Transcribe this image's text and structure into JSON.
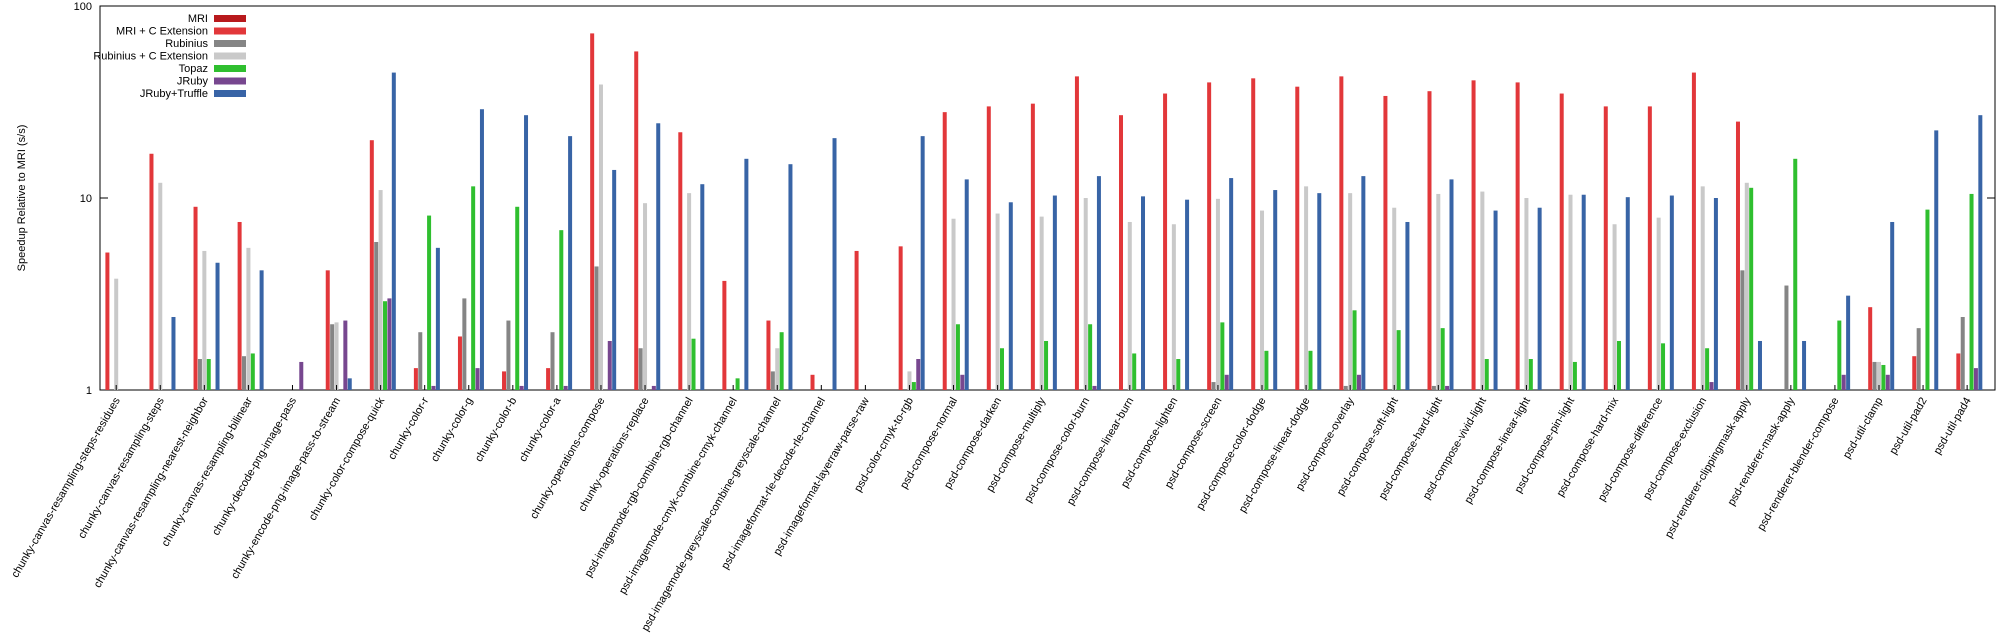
{
  "chart_data": {
    "type": "bar",
    "y_label": "Speedup Relative to MRI (s/s)",
    "log_scale": true,
    "legend": "upper-left",
    "ylim": [
      1,
      100
    ],
    "yticks": [
      1,
      10,
      100
    ],
    "categories": [
      "chunky-canvas-resampling-steps-residues",
      "chunky-canvas-resampling-steps",
      "chunky-canvas-resampling-nearest-neighbor",
      "chunky-canvas-resampling-bilinear",
      "chunky-decode-png-image-pass",
      "chunky-encode-png-image-pass-to-stream",
      "chunky-color-compose-quick",
      "chunky-color-r",
      "chunky-color-g",
      "chunky-color-b",
      "chunky-color-a",
      "chunky-operations-compose",
      "chunky-operations-replace",
      "psd-imagemode-rgb-combine-rgb-channel",
      "psd-imagemode-cmyk-combine-cmyk-channel",
      "psd-imagemode-greyscale-combine-greyscale-channel",
      "psd-imageformat-rle-decode-rle-channel",
      "psd-imageformat-layerraw-parse-raw",
      "psd-color-cmyk-to-rgb",
      "psd-compose-normal",
      "psd-compose-darken",
      "psd-compose-multiply",
      "psd-compose-color-burn",
      "psd-compose-linear-burn",
      "psd-compose-lighten",
      "psd-compose-screen",
      "psd-compose-color-dodge",
      "psd-compose-linear-dodge",
      "psd-compose-overlay",
      "psd-compose-soft-light",
      "psd-compose-hard-light",
      "psd-compose-vivid-light",
      "psd-compose-linear-light",
      "psd-compose-pin-light",
      "psd-compose-hard-mix",
      "psd-compose-difference",
      "psd-compose-exclusion",
      "psd-renderer-clippingmask-apply",
      "psd-renderer-mask-apply",
      "psd-renderer-blender-compose",
      "psd-util-clamp",
      "psd-util-pad2",
      "psd-util-pad4"
    ],
    "series": [
      {
        "name": "MRI",
        "color": "#b8191c",
        "values": [
          1,
          1,
          1,
          1,
          1,
          1,
          1,
          1,
          1,
          1,
          1,
          1,
          1,
          1,
          1,
          1,
          1,
          1,
          1,
          1,
          1,
          1,
          1,
          1,
          1,
          1,
          1,
          1,
          1,
          1,
          1,
          1,
          1,
          1,
          1,
          1,
          1,
          1,
          1,
          1,
          1,
          1,
          1
        ]
      },
      {
        "name": "MRI + C Extension",
        "color": "#e2373a",
        "values": [
          5.2,
          17,
          9,
          7.5,
          null,
          4.2,
          20,
          1.3,
          1.9,
          1.25,
          1.3,
          72,
          58,
          22,
          3.7,
          2.3,
          1.2,
          5.3,
          5.6,
          28,
          30,
          31,
          43,
          27,
          35,
          40,
          42,
          38,
          43,
          34,
          36,
          41,
          40,
          35,
          30,
          30,
          45,
          25,
          null,
          null,
          2.7,
          1.5,
          1.55
        ]
      },
      {
        "name": "Rubinius",
        "color": "#858585",
        "values": [
          null,
          null,
          1.45,
          1.5,
          null,
          2.2,
          5.9,
          2.0,
          3.0,
          2.3,
          2.0,
          4.4,
          1.65,
          null,
          null,
          1.25,
          null,
          null,
          null,
          null,
          null,
          null,
          null,
          null,
          null,
          1.1,
          null,
          null,
          1.05,
          null,
          1.05,
          null,
          null,
          null,
          null,
          null,
          null,
          4.2,
          3.5,
          null,
          1.4,
          2.1,
          2.4
        ]
      },
      {
        "name": "Rubinius + C Extension",
        "color": "#c9c9c9",
        "values": [
          3.8,
          12,
          5.3,
          5.5,
          null,
          2.25,
          11,
          null,
          null,
          null,
          null,
          39,
          9.4,
          10.6,
          null,
          1.65,
          null,
          null,
          1.25,
          7.8,
          8.3,
          8,
          10,
          7.5,
          7.3,
          9.9,
          8.6,
          11.5,
          10.6,
          8.9,
          10.5,
          10.8,
          10,
          10.4,
          7.3,
          7.9,
          11.5,
          12,
          null,
          null,
          1.4,
          null,
          null
        ]
      },
      {
        "name": "Topaz",
        "color": "#2fbf2f",
        "values": [
          null,
          null,
          1.45,
          1.55,
          null,
          null,
          2.9,
          8.1,
          11.5,
          9,
          6.8,
          null,
          null,
          1.85,
          1.15,
          2.0,
          null,
          null,
          1.1,
          2.2,
          1.65,
          1.8,
          2.2,
          1.55,
          1.45,
          2.25,
          1.6,
          1.6,
          2.6,
          2.05,
          2.1,
          1.45,
          1.45,
          1.4,
          1.8,
          1.75,
          1.65,
          11.3,
          16,
          2.3,
          1.35,
          8.7,
          10.5
        ]
      },
      {
        "name": "JRuby",
        "color": "#77478f",
        "values": [
          null,
          null,
          null,
          null,
          1.4,
          2.3,
          3.0,
          1.05,
          1.3,
          1.05,
          1.05,
          1.8,
          1.05,
          null,
          null,
          null,
          null,
          null,
          1.45,
          1.2,
          null,
          null,
          1.05,
          null,
          null,
          1.2,
          null,
          null,
          1.2,
          null,
          1.05,
          null,
          null,
          null,
          null,
          null,
          1.1,
          null,
          null,
          1.2,
          1.2,
          null,
          1.3
        ]
      },
      {
        "name": "JRuby+Truffle",
        "color": "#3864a6",
        "values": [
          null,
          2.4,
          4.6,
          4.2,
          null,
          1.15,
          45,
          5.5,
          29,
          27,
          21,
          14,
          24.5,
          11.8,
          16,
          15,
          20.5,
          null,
          21,
          12.5,
          9.5,
          10.3,
          13,
          10.2,
          9.8,
          12.7,
          11,
          10.6,
          13,
          7.5,
          12.5,
          8.6,
          8.9,
          10.4,
          10.1,
          10.3,
          10,
          1.8,
          1.8,
          3.1,
          7.5,
          22.5,
          27
        ]
      }
    ]
  }
}
